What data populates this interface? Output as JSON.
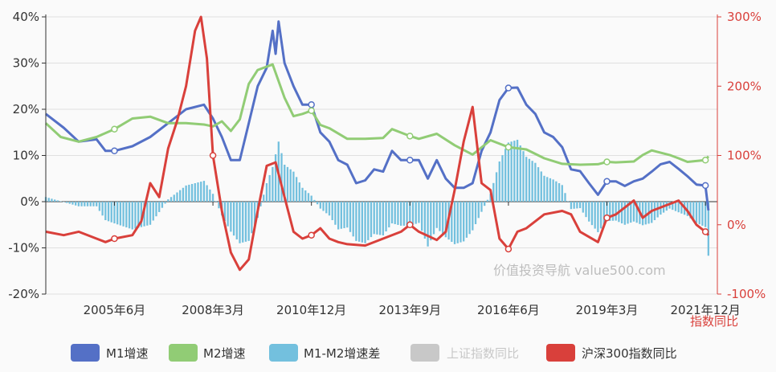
{
  "chart_data": {
    "type": "line",
    "x_ticks": [
      "2005年6月",
      "2008年3月",
      "2010年12月",
      "2013年9月",
      "2016年6月",
      "2019年3月",
      "2021年12月"
    ],
    "x_range": [
      "2003-07",
      "2022-04"
    ],
    "y_left": {
      "ticks": [
        "40%",
        "30%",
        "20%",
        "10%",
        "0%",
        "-10%",
        "-20%"
      ],
      "range": [
        -20,
        40
      ]
    },
    "y_right": {
      "label": "指数同比",
      "ticks": [
        "300%",
        "200%",
        "100%",
        "0%",
        "-100%"
      ],
      "range": [
        -100,
        300
      ]
    },
    "grid": true,
    "legend_position": "bottom",
    "watermark": "价值投资导航 value500.com",
    "colors": {
      "m1": "#5470c6",
      "m2": "#91cc75",
      "diff": "#73c0de",
      "shindex": "#c8c8c8",
      "hs300": "#d9403b"
    },
    "series": [
      {
        "name": "M1增速",
        "key": "m1",
        "axis": "left",
        "style": "line",
        "points": [
          [
            "2003-07",
            19.0
          ],
          [
            "2004-01",
            16.0
          ],
          [
            "2004-06",
            13.0
          ],
          [
            "2004-12",
            13.5
          ],
          [
            "2005-03",
            11.0
          ],
          [
            "2005-06",
            11.0
          ],
          [
            "2005-12",
            12.0
          ],
          [
            "2006-06",
            14.0
          ],
          [
            "2006-12",
            17.0
          ],
          [
            "2007-06",
            20.0
          ],
          [
            "2007-12",
            21.0
          ],
          [
            "2008-03",
            18.0
          ],
          [
            "2008-06",
            14.0
          ],
          [
            "2008-09",
            9.0
          ],
          [
            "2008-12",
            9.0
          ],
          [
            "2009-03",
            17.0
          ],
          [
            "2009-06",
            25.0
          ],
          [
            "2009-09",
            29.0
          ],
          [
            "2009-11",
            37.0
          ],
          [
            "2009-12",
            32.0
          ],
          [
            "2010-01",
            39.0
          ],
          [
            "2010-03",
            30.0
          ],
          [
            "2010-06",
            25.0
          ],
          [
            "2010-09",
            21.0
          ],
          [
            "2010-12",
            21.0
          ],
          [
            "2011-03",
            15.0
          ],
          [
            "2011-06",
            13.0
          ],
          [
            "2011-09",
            9.0
          ],
          [
            "2011-12",
            8.0
          ],
          [
            "2012-03",
            4.0
          ],
          [
            "2012-06",
            4.6
          ],
          [
            "2012-09",
            7.0
          ],
          [
            "2012-12",
            6.5
          ],
          [
            "2013-03",
            11.0
          ],
          [
            "2013-06",
            9.0
          ],
          [
            "2013-09",
            9.0
          ],
          [
            "2013-12",
            9.0
          ],
          [
            "2014-03",
            5.0
          ],
          [
            "2014-06",
            9.0
          ],
          [
            "2014-09",
            5.0
          ],
          [
            "2014-12",
            3.0
          ],
          [
            "2015-03",
            3.0
          ],
          [
            "2015-06",
            4.0
          ],
          [
            "2015-09",
            11.0
          ],
          [
            "2015-12",
            15.0
          ],
          [
            "2016-03",
            22.0
          ],
          [
            "2016-06",
            24.6
          ],
          [
            "2016-09",
            24.7
          ],
          [
            "2016-12",
            21.0
          ],
          [
            "2017-03",
            19.0
          ],
          [
            "2017-06",
            15.0
          ],
          [
            "2017-09",
            14.0
          ],
          [
            "2017-12",
            11.8
          ],
          [
            "2018-03",
            7.0
          ],
          [
            "2018-06",
            6.6
          ],
          [
            "2018-09",
            4.0
          ],
          [
            "2018-12",
            1.5
          ],
          [
            "2019-03",
            4.4
          ],
          [
            "2019-06",
            4.4
          ],
          [
            "2019-09",
            3.4
          ],
          [
            "2019-12",
            4.4
          ],
          [
            "2020-03",
            5.0
          ],
          [
            "2020-06",
            6.5
          ],
          [
            "2020-09",
            8.1
          ],
          [
            "2020-12",
            8.6
          ],
          [
            "2021-03",
            7.1
          ],
          [
            "2021-06",
            5.5
          ],
          [
            "2021-09",
            3.7
          ],
          [
            "2021-12",
            3.5
          ],
          [
            "2022-01",
            -1.9
          ]
        ],
        "markers": [
          "2005-06",
          "2010-12",
          "2013-09",
          "2016-06",
          "2019-03",
          "2021-12"
        ]
      },
      {
        "name": "M2增速",
        "key": "m2",
        "axis": "left",
        "style": "line",
        "points": [
          [
            "2003-07",
            17.0
          ],
          [
            "2003-12",
            14.0
          ],
          [
            "2004-06",
            13.0
          ],
          [
            "2004-12",
            14.0
          ],
          [
            "2005-06",
            15.7
          ],
          [
            "2005-12",
            18.0
          ],
          [
            "2006-06",
            18.4
          ],
          [
            "2006-12",
            17.0
          ],
          [
            "2007-06",
            17.0
          ],
          [
            "2007-12",
            16.7
          ],
          [
            "2008-03",
            16.3
          ],
          [
            "2008-06",
            17.4
          ],
          [
            "2008-09",
            15.3
          ],
          [
            "2008-12",
            17.8
          ],
          [
            "2009-03",
            25.5
          ],
          [
            "2009-06",
            28.5
          ],
          [
            "2009-11",
            29.7
          ],
          [
            "2010-03",
            22.5
          ],
          [
            "2010-06",
            18.5
          ],
          [
            "2010-09",
            19.0
          ],
          [
            "2010-12",
            19.7
          ],
          [
            "2011-03",
            16.6
          ],
          [
            "2011-06",
            15.9
          ],
          [
            "2011-12",
            13.6
          ],
          [
            "2012-06",
            13.6
          ],
          [
            "2012-12",
            13.8
          ],
          [
            "2013-03",
            15.7
          ],
          [
            "2013-09",
            14.2
          ],
          [
            "2013-12",
            13.6
          ],
          [
            "2014-06",
            14.7
          ],
          [
            "2014-12",
            12.2
          ],
          [
            "2015-06",
            10.2
          ],
          [
            "2015-12",
            13.3
          ],
          [
            "2016-06",
            11.8
          ],
          [
            "2016-12",
            11.3
          ],
          [
            "2017-06",
            9.4
          ],
          [
            "2017-12",
            8.2
          ],
          [
            "2018-06",
            8.0
          ],
          [
            "2018-12",
            8.1
          ],
          [
            "2019-03",
            8.6
          ],
          [
            "2019-06",
            8.5
          ],
          [
            "2019-12",
            8.7
          ],
          [
            "2020-03",
            10.1
          ],
          [
            "2020-06",
            11.1
          ],
          [
            "2020-12",
            10.1
          ],
          [
            "2021-03",
            9.4
          ],
          [
            "2021-06",
            8.6
          ],
          [
            "2021-12",
            9.0
          ],
          [
            "2022-01",
            9.8
          ]
        ],
        "markers": [
          "2005-06",
          "2010-12",
          "2013-09",
          "2016-06",
          "2019-03",
          "2021-12"
        ]
      },
      {
        "name": "M1-M2增速差",
        "key": "diff",
        "axis": "left",
        "style": "bar",
        "points": [
          [
            "2003-07",
            1.0
          ],
          [
            "2004-06",
            -1.0
          ],
          [
            "2004-12",
            -1.0
          ],
          [
            "2005-03",
            -4.0
          ],
          [
            "2005-06",
            -4.7
          ],
          [
            "2005-12",
            -6.0
          ],
          [
            "2006-06",
            -5.0
          ],
          [
            "2006-12",
            0.5
          ],
          [
            "2007-06",
            3.5
          ],
          [
            "2007-12",
            4.5
          ],
          [
            "2008-03",
            1.7
          ],
          [
            "2008-06",
            -3.0
          ],
          [
            "2008-09",
            -6.5
          ],
          [
            "2008-12",
            -9.0
          ],
          [
            "2009-03",
            -8.5
          ],
          [
            "2009-06",
            -3.5
          ],
          [
            "2009-09",
            4.0
          ],
          [
            "2009-11",
            7.5
          ],
          [
            "2010-01",
            13.0
          ],
          [
            "2010-03",
            8.0
          ],
          [
            "2010-06",
            6.5
          ],
          [
            "2010-09",
            3.0
          ],
          [
            "2010-12",
            1.3
          ],
          [
            "2011-03",
            -1.5
          ],
          [
            "2011-06",
            -3.0
          ],
          [
            "2011-09",
            -6.0
          ],
          [
            "2011-12",
            -5.6
          ],
          [
            "2012-03",
            -8.5
          ],
          [
            "2012-06",
            -9.0
          ],
          [
            "2012-09",
            -7.0
          ],
          [
            "2012-12",
            -7.3
          ],
          [
            "2013-03",
            -4.7
          ],
          [
            "2013-06",
            -5.2
          ],
          [
            "2013-09",
            -5.2
          ],
          [
            "2013-12",
            -4.6
          ],
          [
            "2014-03",
            -9.7
          ],
          [
            "2014-06",
            -5.7
          ],
          [
            "2014-09",
            -7.7
          ],
          [
            "2014-12",
            -9.2
          ],
          [
            "2015-03",
            -8.6
          ],
          [
            "2015-06",
            -6.2
          ],
          [
            "2015-09",
            -2.2
          ],
          [
            "2015-12",
            1.7
          ],
          [
            "2016-03",
            8.7
          ],
          [
            "2016-06",
            12.8
          ],
          [
            "2016-09",
            13.4
          ],
          [
            "2016-12",
            9.7
          ],
          [
            "2017-03",
            8.4
          ],
          [
            "2017-06",
            5.6
          ],
          [
            "2017-09",
            4.8
          ],
          [
            "2017-12",
            3.6
          ],
          [
            "2018-03",
            -1.6
          ],
          [
            "2018-06",
            -1.4
          ],
          [
            "2018-09",
            -4.3
          ],
          [
            "2018-12",
            -6.6
          ],
          [
            "2019-03",
            -4.2
          ],
          [
            "2019-06",
            -4.1
          ],
          [
            "2019-09",
            -5.0
          ],
          [
            "2019-12",
            -4.3
          ],
          [
            "2020-03",
            -5.1
          ],
          [
            "2020-06",
            -4.6
          ],
          [
            "2020-09",
            -2.8
          ],
          [
            "2020-12",
            -1.5
          ],
          [
            "2021-03",
            -2.3
          ],
          [
            "2021-06",
            -3.1
          ],
          [
            "2021-09",
            -4.6
          ],
          [
            "2021-12",
            -5.5
          ],
          [
            "2022-01",
            -11.7
          ]
        ]
      },
      {
        "name": "上证指数同比",
        "key": "shindex",
        "axis": "right",
        "style": "line",
        "hidden": true,
        "points": []
      },
      {
        "name": "沪深300指数同比",
        "key": "hs300",
        "axis": "right",
        "style": "line",
        "points": [
          [
            "2003-07",
            -10.0
          ],
          [
            "2004-01",
            -15.0
          ],
          [
            "2004-06",
            -10.0
          ],
          [
            "2004-12",
            -20.0
          ],
          [
            "2005-03",
            -25.0
          ],
          [
            "2005-06",
            -20.0
          ],
          [
            "2005-12",
            -15.0
          ],
          [
            "2006-03",
            5.0
          ],
          [
            "2006-06",
            60.0
          ],
          [
            "2006-09",
            40.0
          ],
          [
            "2006-12",
            110.0
          ],
          [
            "2007-03",
            150.0
          ],
          [
            "2007-06",
            200.0
          ],
          [
            "2007-09",
            280.0
          ],
          [
            "2007-11",
            300.0
          ],
          [
            "2008-01",
            240.0
          ],
          [
            "2008-03",
            100.0
          ],
          [
            "2008-06",
            20.0
          ],
          [
            "2008-09",
            -40.0
          ],
          [
            "2008-12",
            -65.0
          ],
          [
            "2009-03",
            -50.0
          ],
          [
            "2009-06",
            20.0
          ],
          [
            "2009-09",
            85.0
          ],
          [
            "2009-12",
            90.0
          ],
          [
            "2010-03",
            40.0
          ],
          [
            "2010-06",
            -10.0
          ],
          [
            "2010-09",
            -20.0
          ],
          [
            "2010-12",
            -15.0
          ],
          [
            "2011-03",
            -5.0
          ],
          [
            "2011-06",
            -20.0
          ],
          [
            "2011-09",
            -25.0
          ],
          [
            "2011-12",
            -28.0
          ],
          [
            "2012-06",
            -30.0
          ],
          [
            "2012-12",
            -20.0
          ],
          [
            "2013-06",
            -10.0
          ],
          [
            "2013-09",
            0.0
          ],
          [
            "2013-12",
            -10.0
          ],
          [
            "2014-06",
            -22.0
          ],
          [
            "2014-09",
            -10.0
          ],
          [
            "2014-12",
            50.0
          ],
          [
            "2015-03",
            120.0
          ],
          [
            "2015-06",
            170.0
          ],
          [
            "2015-09",
            60.0
          ],
          [
            "2015-12",
            50.0
          ],
          [
            "2016-03",
            -20.0
          ],
          [
            "2016-06",
            -35.0
          ],
          [
            "2016-09",
            -10.0
          ],
          [
            "2016-12",
            -5.0
          ],
          [
            "2017-06",
            15.0
          ],
          [
            "2017-12",
            20.0
          ],
          [
            "2018-03",
            15.0
          ],
          [
            "2018-06",
            -10.0
          ],
          [
            "2018-12",
            -25.0
          ],
          [
            "2019-03",
            10.0
          ],
          [
            "2019-06",
            15.0
          ],
          [
            "2019-12",
            35.0
          ],
          [
            "2020-03",
            10.0
          ],
          [
            "2020-06",
            20.0
          ],
          [
            "2020-12",
            30.0
          ],
          [
            "2021-03",
            35.0
          ],
          [
            "2021-06",
            20.0
          ],
          [
            "2021-09",
            0.0
          ],
          [
            "2021-12",
            -10.0
          ],
          [
            "2022-01",
            -15.0
          ]
        ],
        "markers": [
          "2005-06",
          "2008-03",
          "2010-12",
          "2013-09",
          "2016-06",
          "2019-03",
          "2021-12"
        ]
      }
    ]
  }
}
